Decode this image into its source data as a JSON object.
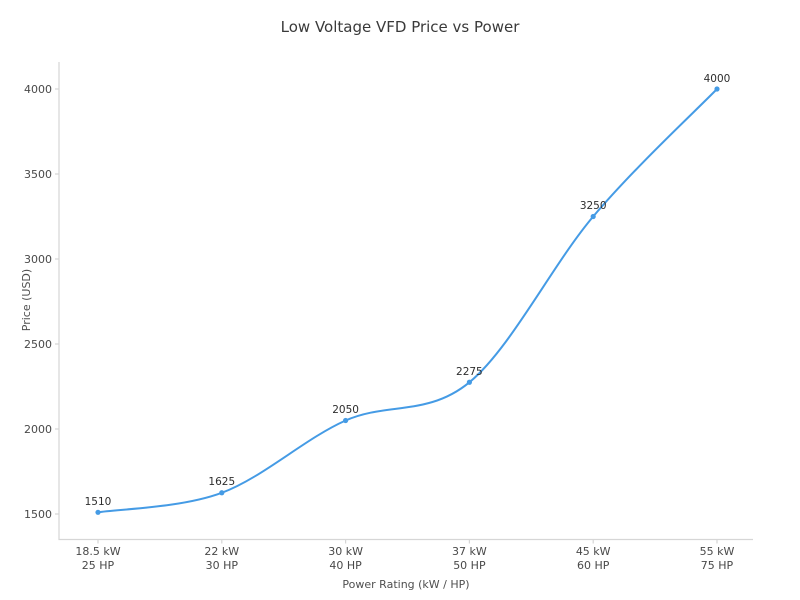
{
  "chart_data": {
    "type": "line",
    "title": "Low Voltage VFD Price vs Power",
    "xlabel": "Power Rating (kW / HP)",
    "ylabel": "Price (USD)",
    "x_tick_labels": [
      [
        "18.5 kW",
        "25 HP"
      ],
      [
        "22 kW",
        "30 HP"
      ],
      [
        "30 kW",
        "40 HP"
      ],
      [
        "37 kW",
        "50 HP"
      ],
      [
        "45 kW",
        "60 HP"
      ],
      [
        "55 kW",
        "75 HP"
      ]
    ],
    "values": [
      1510,
      1625,
      2050,
      2275,
      3250,
      4000
    ],
    "point_labels": [
      "1510",
      "1625",
      "2050",
      "2275",
      "3250",
      "4000"
    ],
    "y_ticks": [
      1500,
      2000,
      2500,
      3000,
      3500,
      4000
    ],
    "ylim": [
      1350,
      4160
    ],
    "line_shape": "spline",
    "grid": "off",
    "legend": "none",
    "colors": {
      "line": "#459be5",
      "marker": "#459be5",
      "spine": "#d6d6d6",
      "tick_text": "#494949",
      "title_text": "#3a3a3a",
      "point_label_text": "#2e2e2e",
      "background": "#ffffff"
    }
  }
}
